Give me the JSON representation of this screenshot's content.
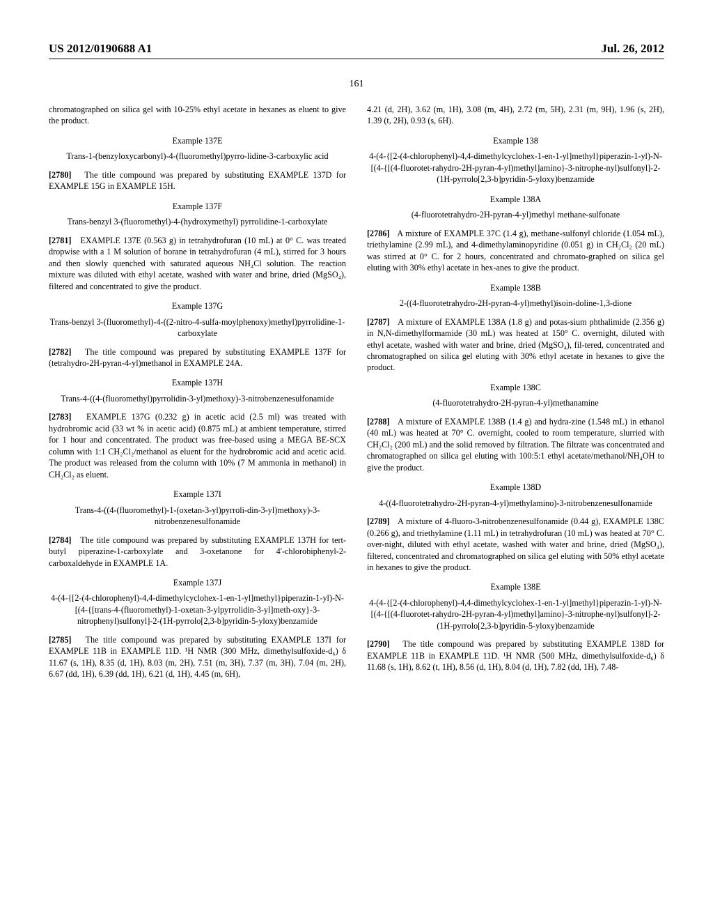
{
  "header": {
    "left": "US 2012/0190688 A1",
    "right": "Jul. 26, 2012"
  },
  "page_number": "161",
  "left_column": {
    "intro": "chromatographed on silica gel with 10-25% ethyl acetate in hexanes as eluent to give the product.",
    "ex137E": {
      "heading": "Example 137E",
      "name": "Trans-1-(benzyloxycarbonyl)-4-(fluoromethyl)pyrro-lidine-3-carboxylic acid",
      "para": "[2780]",
      "text": "The title compound was prepared by substituting EXAMPLE 137D for EXAMPLE 15G in EXAMPLE 15H."
    },
    "ex137F": {
      "heading": "Example 137F",
      "name": "Trans-benzyl 3-(fluoromethyl)-4-(hydroxymethyl) pyrrolidine-1-carboxylate",
      "para": "[2781]",
      "text": "EXAMPLE 137E (0.563 g) in tetrahydrofuran (10 mL) at 0° C. was treated dropwise with a 1 M solution of borane in tetrahydrofuran (4 mL), stirred for 3 hours and then slowly quenched with saturated aqueous NH₄Cl solution. The reaction mixture was diluted with ethyl acetate, washed with water and brine, dried (MgSO₄), filtered and concentrated to give the product."
    },
    "ex137G": {
      "heading": "Example 137G",
      "name": "Trans-benzyl 3-(fluoromethyl)-4-((2-nitro-4-sulfa-moylphenoxy)methyl)pyrrolidine-1-carboxylate",
      "para": "[2782]",
      "text": "The title compound was prepared by substituting EXAMPLE 137F for (tetrahydro-2H-pyran-4-yl)methanol in EXAMPLE 24A."
    },
    "ex137H": {
      "heading": "Example 137H",
      "name": "Trans-4-((4-(fluoromethyl)pyrrolidin-3-yl)methoxy)-3-nitrobenzenesulfonamide",
      "para": "[2783]",
      "text": "EXAMPLE 137G (0.232 g) in acetic acid (2.5 ml) was treated with hydrobromic acid (33 wt % in acetic acid) (0.875 mL) at ambient temperature, stirred for 1 hour and concentrated. The product was free-based using a MEGA BE-SCX column with 1:1 CH₂Cl₂/methanol as eluent for the hydrobromic acid and acetic acid. The product was released from the column with 10% (7 M ammonia in methanol) in CH₂Cl₂ as eluent."
    },
    "ex137I": {
      "heading": "Example 137I",
      "name": "Trans-4-((4-(fluoromethyl)-1-(oxetan-3-yl)pyrroli-din-3-yl)methoxy)-3-nitrobenzenesulfonamide",
      "para": "[2784]",
      "text": "The title compound was prepared by substituting EXAMPLE 137H for tert-butyl piperazine-1-carboxylate and 3-oxetanone for 4'-chlorobiphenyl-2-carboxaldehyde in EXAMPLE 1A."
    },
    "ex137J": {
      "heading": "Example 137J",
      "name": "4-(4-{[2-(4-chlorophenyl)-4,4-dimethylcyclohex-1-en-1-yl]methyl}piperazin-1-yl)-N-[(4-{[trans-4-(fluoromethyl)-1-oxetan-3-ylpyrrolidin-3-yl]meth-oxy}-3-nitrophenyl)sulfonyl]-2-(1H-pyrrolo[2,3-b]pyridin-5-yloxy)benzamide",
      "para": "[2785]",
      "text": "The title compound was prepared by substituting EXAMPLE 137I for EXAMPLE 11B in EXAMPLE 11D. ¹H NMR (300 MHz, dimethylsulfoxide-d₆) δ 11.67 (s, 1H), 8.35 (d, 1H), 8.03 (m, 2H), 7.51 (m, 3H), 7.37 (m, 3H), 7.04 (m, 2H), 6.67 (dd, 1H), 6.39 (dd, 1H), 6.21 (d, 1H), 4.45 (m, 6H),"
    }
  },
  "right_column": {
    "intro": "4.21 (d, 2H), 3.62 (m, 1H), 3.08 (m, 4H), 2.72 (m, 5H), 2.31 (m, 9H), 1.96 (s, 2H), 1.39 (t, 2H), 0.93 (s, 6H).",
    "ex138": {
      "heading": "Example 138",
      "name": "4-(4-{[2-(4-chlorophenyl)-4,4-dimethylcyclohex-1-en-1-yl]methyl}piperazin-1-yl)-N-[(4-{[(4-fluorotet-rahydro-2H-pyran-4-yl)methyl]amino}-3-nitrophe-nyl)sulfonyl]-2-(1H-pyrrolo[2,3-b]pyridin-5-yloxy)benzamide"
    },
    "ex138A": {
      "heading": "Example 138A",
      "name": "(4-fluorotetrahydro-2H-pyran-4-yl)methyl methane-sulfonate",
      "para": "[2786]",
      "text": "A mixture of EXAMPLE 37C (1.4 g), methane-sulfonyl chloride (1.054 mL), triethylamine (2.99 mL), and 4-dimethylaminopyridine (0.051 g) in CH₂Cl₂ (20 mL) was stirred at 0° C. for 2 hours, concentrated and chromato-graphed on silica gel eluting with 30% ethyl acetate in hex-anes to give the product."
    },
    "ex138B": {
      "heading": "Example 138B",
      "name": "2-((4-fluorotetrahydro-2H-pyran-4-yl)methyl)isoin-doline-1,3-dione",
      "para": "[2787]",
      "text": "A mixture of EXAMPLE 138A (1.8 g) and potas-sium phthalimide (2.356 g) in N,N-dimethylformamide (30 mL) was heated at 150° C. overnight, diluted with ethyl acetate, washed with water and brine, dried (MgSO₄), fil-tered, concentrated and chromatographed on silica gel eluting with 30% ethyl acetate in hexanes to give the product."
    },
    "ex138C": {
      "heading": "Example 138C",
      "name": "(4-fluorotetrahydro-2H-pyran-4-yl)methanamine",
      "para": "[2788]",
      "text": "A mixture of EXAMPLE 138B (1.4 g) and hydra-zine (1.548 mL) in ethanol (40 mL) was heated at 70° C. overnight, cooled to room temperature, slurried with CH₂Cl₂ (200 mL) and the solid removed by filtration. The filtrate was concentrated and chromatographed on silica gel eluting with 100:5:1 ethyl acetate/methanol/NH₄OH to give the product."
    },
    "ex138D": {
      "heading": "Example 138D",
      "name": "4-((4-fluorotetrahydro-2H-pyran-4-yl)methylamino)-3-nitrobenzenesulfonamide",
      "para": "[2789]",
      "text": "A mixture of 4-fluoro-3-nitrobenzenesulfonamide (0.44 g), EXAMPLE 138C (0.266 g), and triethylamine (1.11 mL) in tetrahydrofuran (10 mL) was heated at 70° C. over-night, diluted with ethyl acetate, washed with water and brine, dried (MgSO₄), filtered, concentrated and chromatographed on silica gel eluting with 50% ethyl acetate in hexanes to give the product."
    },
    "ex138E": {
      "heading": "Example 138E",
      "name": "4-(4-{[2-(4-chlorophenyl)-4,4-dimethylcyclohex-1-en-1-yl]methyl}piperazin-1-yl)-N-[(4-{[(4-fluorotet-rahydro-2H-pyran-4-yl)methyl]amino}-3-nitrophe-nyl)sulfonyl]-2-(1H-pyrrolo[2,3-b]pyridin-5-yloxy)benzamide",
      "para": "[2790]",
      "text": "The title compound was prepared by substituting EXAMPLE 138D for EXAMPLE 11B in EXAMPLE 11D. ¹H NMR (500 MHz, dimethylsulfoxide-d₆) δ 11.68 (s, 1H), 8.62 (t, 1H), 8.56 (d, 1H), 8.04 (d, 1H), 7.82 (dd, 1H), 7.48-"
    }
  }
}
